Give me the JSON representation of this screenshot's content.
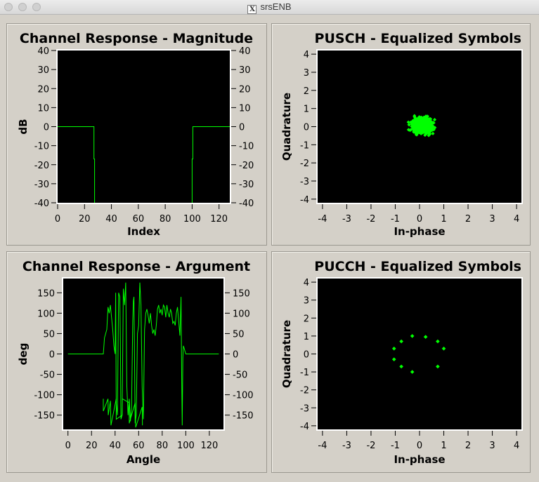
{
  "window": {
    "title": "srsENB"
  },
  "colors": {
    "plot_bg": "#000000",
    "trace": "#00ff00",
    "frame": "#d4d0c8"
  },
  "plots": {
    "mag": {
      "title": "Channel Response - Magnitude",
      "xlabel": "Index",
      "ylabel": "dB"
    },
    "pusch": {
      "title": "PUSCH - Equalized Symbols",
      "xlabel": "In-phase",
      "ylabel": "Quadrature"
    },
    "arg": {
      "title": "Channel Response - Argument",
      "xlabel": "Angle",
      "ylabel": "deg"
    },
    "pucch": {
      "title": "PUCCH - Equalized Symbols",
      "xlabel": "In-phase",
      "ylabel": "Quadrature"
    }
  },
  "chart_data": [
    {
      "id": "mag",
      "type": "line",
      "title": "Channel Response - Magnitude",
      "xlabel": "Index",
      "ylabel": "dB",
      "xlim": [
        0,
        128
      ],
      "ylim": [
        -40,
        40
      ],
      "xticks": [
        0,
        20,
        40,
        60,
        80,
        100,
        120
      ],
      "yticks": [
        40,
        30,
        20,
        10,
        0,
        -10,
        -20,
        -30,
        -40
      ],
      "mirror_y_axis": true,
      "series": [
        {
          "x": [
            0,
            27,
            27,
            27.5,
            27.5,
            100,
            100,
            100.5,
            100.5,
            128
          ],
          "y": [
            0,
            0,
            -17,
            -17,
            -42,
            -42,
            -17,
            -17,
            0,
            0
          ]
        }
      ]
    },
    {
      "id": "pusch",
      "type": "scatter",
      "title": "PUSCH - Equalized Symbols",
      "xlabel": "In-phase",
      "ylabel": "Quadrature",
      "xlim": [
        -4.2,
        4.2
      ],
      "ylim": [
        -4.2,
        4.2
      ],
      "xticks": [
        -4,
        -3,
        -2,
        -1,
        0,
        1,
        2,
        3,
        4
      ],
      "yticks": [
        4,
        3,
        2,
        1,
        0,
        -1,
        -2,
        -3,
        -4
      ],
      "cloud": {
        "center": [
          0.1,
          0.05
        ],
        "spread": 0.3,
        "count": 450
      }
    },
    {
      "id": "arg",
      "type": "line",
      "title": "Channel Response - Argument",
      "xlabel": "Angle",
      "ylabel": "deg",
      "xlim": [
        -4,
        132
      ],
      "ylim": [
        -185,
        185
      ],
      "xticks": [
        0,
        20,
        40,
        60,
        80,
        100,
        120
      ],
      "yticks": [
        150,
        100,
        50,
        0,
        -50,
        -100,
        -150
      ],
      "mirror_y_axis": true,
      "series": [
        {
          "x": [
            0,
            30,
            31,
            33,
            34,
            35,
            36,
            37,
            38,
            39,
            40,
            40.5,
            41,
            42,
            43,
            44,
            44.5,
            45,
            46,
            47,
            48,
            49,
            50,
            51,
            52,
            53,
            54,
            55,
            55.5,
            56,
            57,
            58,
            59,
            60,
            61,
            62,
            63,
            64,
            65,
            66,
            67,
            68,
            69,
            70,
            71,
            72,
            73,
            74,
            75,
            76,
            77,
            78,
            79,
            80,
            81,
            82,
            83,
            84,
            85,
            86,
            87,
            88,
            89,
            90,
            91,
            92,
            93,
            94,
            95,
            96,
            96.5,
            97,
            97.5,
            98,
            99,
            100,
            101,
            102,
            103,
            104,
            128
          ],
          "y": [
            0,
            0,
            40,
            60,
            115,
            100,
            120,
            90,
            60,
            20,
            0,
            150,
            -120,
            -150,
            150,
            140,
            30,
            -160,
            -150,
            160,
            120,
            175,
            -80,
            -150,
            -110,
            -165,
            -130,
            80,
            130,
            140,
            -170,
            -150,
            50,
            70,
            175,
            120,
            -80,
            -160,
            60,
            100,
            110,
            95,
            75,
            100,
            70,
            50,
            60,
            45,
            70,
            110,
            120,
            100,
            110,
            95,
            120,
            115,
            90,
            120,
            100,
            90,
            110,
            100,
            75,
            80,
            70,
            100,
            115,
            80,
            45,
            140,
            -50,
            -175,
            -10,
            20,
            10,
            0,
            0,
            0,
            0,
            0,
            0
          ]
        },
        {
          "x": [
            30,
            30,
            34,
            34.2,
            36,
            36.5,
            41,
            41,
            46,
            46.2,
            52,
            52,
            57,
            57.5,
            63,
            63.2
          ],
          "y": [
            -110,
            -140,
            -110,
            -150,
            -115,
            -175,
            -110,
            -160,
            -150,
            -110,
            -120,
            -170,
            -120,
            -180,
            -130,
            -175
          ]
        }
      ]
    },
    {
      "id": "pucch",
      "type": "scatter",
      "title": "PUCCH - Equalized Symbols",
      "xlabel": "In-phase",
      "ylabel": "Quadrature",
      "xlim": [
        -4.2,
        4.2
      ],
      "ylim": [
        -4.2,
        4.2
      ],
      "xticks": [
        -4,
        -3,
        -2,
        -1,
        0,
        1,
        2,
        3,
        4
      ],
      "yticks": [
        4,
        3,
        2,
        1,
        0,
        -1,
        -2,
        -3,
        -4
      ],
      "points": [
        [
          -1.05,
          0.3
        ],
        [
          -1.05,
          -0.3
        ],
        [
          -0.75,
          0.7
        ],
        [
          -0.75,
          -0.7
        ],
        [
          -0.3,
          1.0
        ],
        [
          -0.3,
          -1.0
        ],
        [
          0.25,
          0.95
        ],
        [
          0.75,
          0.7
        ],
        [
          1.0,
          0.3
        ],
        [
          0.75,
          -0.7
        ]
      ]
    }
  ]
}
